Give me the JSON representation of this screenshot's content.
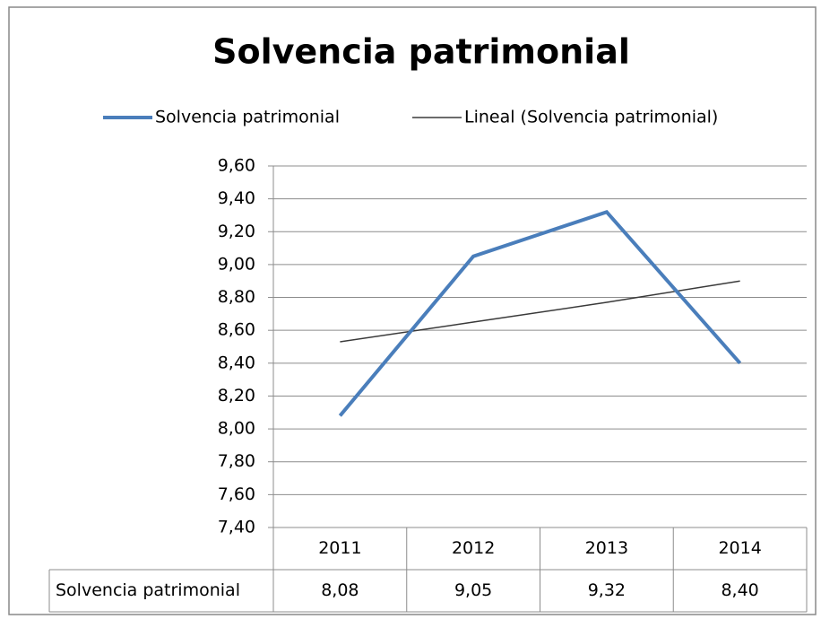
{
  "chart_data": {
    "type": "line",
    "title": "Solvencia patrimonial",
    "categories": [
      "2011",
      "2012",
      "2013",
      "2014"
    ],
    "series": [
      {
        "name": "Solvencia patrimonial",
        "color": "#4a7ebb",
        "values": [
          8.08,
          9.05,
          9.32,
          8.4
        ],
        "value_labels": [
          "8,08",
          "9,05",
          "9,32",
          "8,40"
        ]
      },
      {
        "name": "Lineal (Solvencia patrimonial)",
        "color": "#3a3a3a",
        "values": [
          8.53,
          8.65,
          8.77,
          8.9
        ]
      }
    ],
    "ylim": [
      7.4,
      9.6
    ],
    "yticks": [
      {
        "value": 7.4,
        "label": "7,40"
      },
      {
        "value": 7.6,
        "label": "7,60"
      },
      {
        "value": 7.8,
        "label": "7,80"
      },
      {
        "value": 8.0,
        "label": "8,00"
      },
      {
        "value": 8.2,
        "label": "8,20"
      },
      {
        "value": 8.4,
        "label": "8,40"
      },
      {
        "value": 8.6,
        "label": "8,60"
      },
      {
        "value": 8.8,
        "label": "8,80"
      },
      {
        "value": 9.0,
        "label": "9,00"
      },
      {
        "value": 9.2,
        "label": "9,20"
      },
      {
        "value": 9.4,
        "label": "9,40"
      },
      {
        "value": 9.6,
        "label": "9,60"
      }
    ],
    "grid": true,
    "legend": "top"
  }
}
